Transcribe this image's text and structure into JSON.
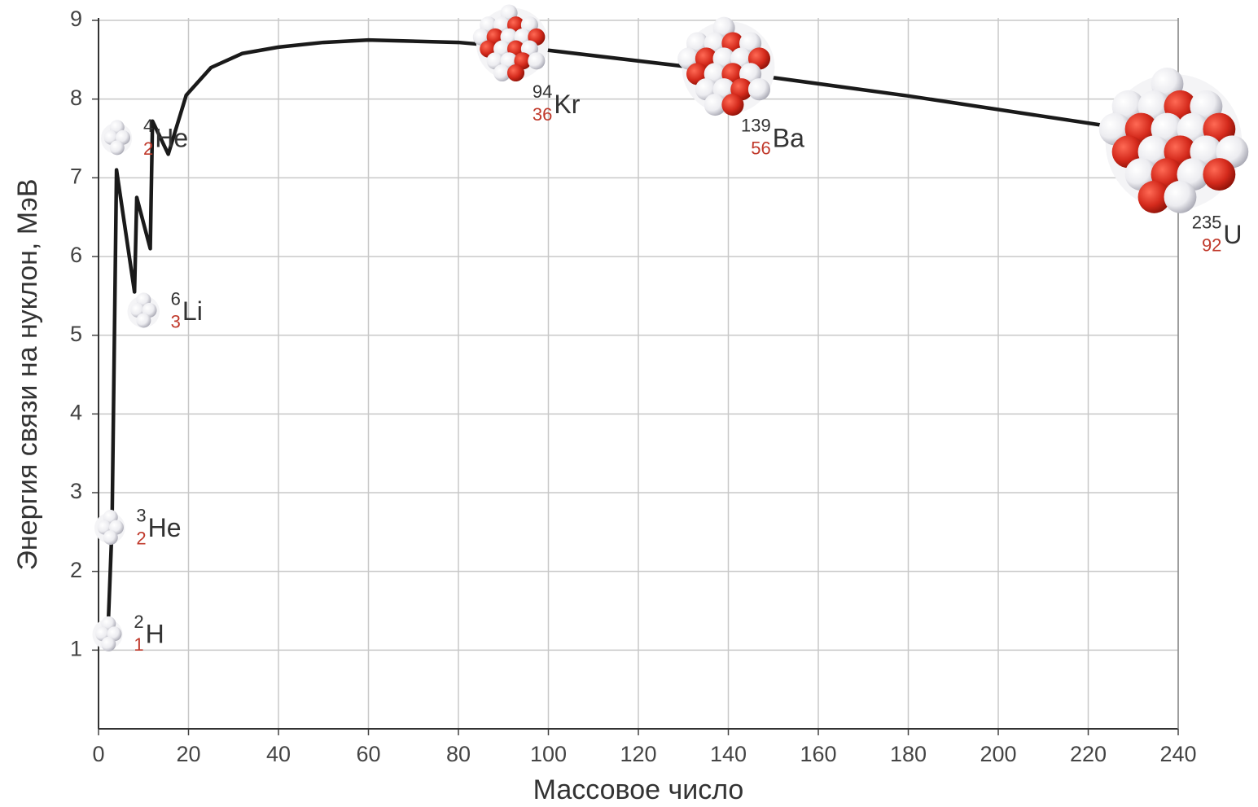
{
  "chart_data": {
    "type": "line",
    "xlabel": "Массовое число",
    "ylabel": "Энергия связи на нуклон, МэВ",
    "xlim": [
      0,
      240
    ],
    "xticks": [
      0,
      20,
      40,
      60,
      80,
      100,
      120,
      140,
      160,
      180,
      200,
      220,
      240
    ],
    "ylim": [
      0,
      9
    ],
    "yticks": [
      1,
      2,
      3,
      4,
      5,
      6,
      7,
      8,
      9
    ],
    "grid": true,
    "x": [
      2,
      3,
      4,
      8,
      8.5,
      11.5,
      12,
      15.5,
      19.5,
      25,
      32,
      40,
      50,
      60,
      80,
      100,
      140,
      180,
      224
    ],
    "series": [
      {
        "color": "#1a1a1a",
        "values": [
          1.1,
          2.57,
          7.1,
          5.55,
          6.75,
          6.1,
          7.72,
          7.3,
          8.05,
          8.4,
          8.58,
          8.66,
          8.72,
          8.75,
          8.72,
          8.62,
          8.35,
          8.04,
          7.66
        ]
      }
    ],
    "annotations": [
      {
        "symbol": "H",
        "mass": 2,
        "charge": 1,
        "x": 2,
        "y": 1.2
      },
      {
        "symbol": "He",
        "mass": 3,
        "charge": 2,
        "x": 2.5,
        "y": 2.55
      },
      {
        "symbol": "He",
        "mass": 4,
        "charge": 2,
        "x": 4,
        "y": 7.5
      },
      {
        "symbol": "Li",
        "mass": 6,
        "charge": 3,
        "x": 10,
        "y": 5.3
      },
      {
        "symbol": "Kr",
        "mass": 94,
        "charge": 36,
        "x": 92,
        "y": 8.7
      },
      {
        "symbol": "Ba",
        "mass": 139,
        "charge": 56,
        "x": 140,
        "y": 8.4
      },
      {
        "symbol": "U",
        "mass": 235,
        "charge": 92,
        "x": 239,
        "y": 7.45
      }
    ]
  }
}
